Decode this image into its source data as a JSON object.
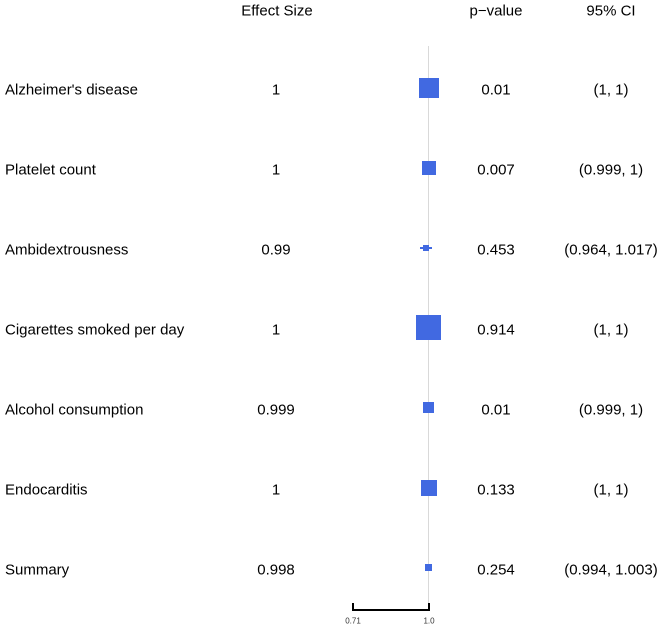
{
  "chart_data": {
    "type": "forest",
    "headers": {
      "effect": "Effect Size",
      "pvalue": "p−value",
      "ci": "95% CI"
    },
    "axis": {
      "scale": "log",
      "ticks": [
        0.71,
        1.0
      ],
      "tick_labels": [
        "0.71",
        "1.0"
      ],
      "reference_value": 1.0
    },
    "colors": {
      "marker": "#4169E1",
      "refline": "#D9D9D9",
      "axis": "#000000"
    },
    "rows": [
      {
        "label": "Alzheimer's disease",
        "effect_text": "1",
        "effect": 1.0,
        "ci_low": 1.0,
        "ci_high": 1.0,
        "pvalue": "0.01",
        "ci_text": "(1, 1)",
        "marker_size": 20
      },
      {
        "label": "Platelet count",
        "effect_text": "1",
        "effect": 1.0,
        "ci_low": 0.999,
        "ci_high": 1.0,
        "pvalue": "0.007",
        "ci_text": "(0.999, 1)",
        "marker_size": 14
      },
      {
        "label": "Ambidextrousness",
        "effect_text": "0.99",
        "effect": 0.99,
        "ci_low": 0.964,
        "ci_high": 1.017,
        "pvalue": "0.453",
        "ci_text": "(0.964, 1.017)",
        "marker_size": 6
      },
      {
        "label": "Cigarettes smoked per day",
        "effect_text": "1",
        "effect": 1.0,
        "ci_low": 1.0,
        "ci_high": 1.0,
        "pvalue": "0.914",
        "ci_text": "(1, 1)",
        "marker_size": 25
      },
      {
        "label": "Alcohol consumption",
        "effect_text": "0.999",
        "effect": 0.999,
        "ci_low": 0.999,
        "ci_high": 1.0,
        "pvalue": "0.01",
        "ci_text": "(0.999, 1)",
        "marker_size": 11
      },
      {
        "label": "Endocarditis",
        "effect_text": "1",
        "effect": 1.0,
        "ci_low": 1.0,
        "ci_high": 1.0,
        "pvalue": "0.133",
        "ci_text": "(1, 1)",
        "marker_size": 16
      },
      {
        "label": "Summary",
        "effect_text": "0.998",
        "effect": 0.998,
        "ci_low": 0.994,
        "ci_high": 1.003,
        "pvalue": "0.254",
        "ci_text": "(0.994, 1.003)",
        "marker_size": 7
      }
    ]
  }
}
